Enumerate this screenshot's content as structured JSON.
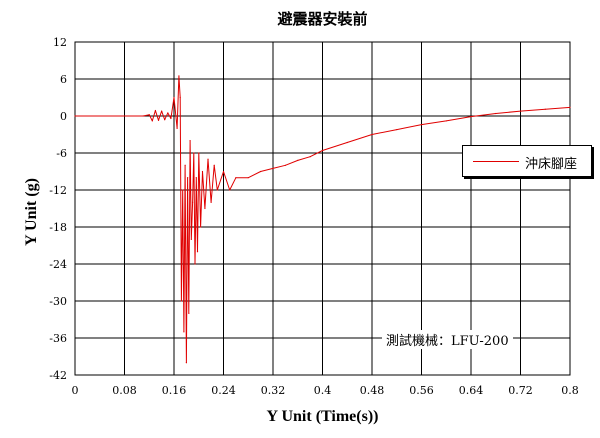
{
  "chart_data": {
    "type": "line",
    "title": "避震器安裝前",
    "xlabel": "Y Unit (Time(s))",
    "ylabel": "Y Unit (g)",
    "xlim": [
      0,
      0.8
    ],
    "ylim": [
      -42,
      12
    ],
    "x_ticks": [
      "0",
      "0.08",
      "0.16",
      "0.24",
      "0.32",
      "0.4",
      "0.48",
      "0.56",
      "0.64",
      "0.72",
      "0.8"
    ],
    "y_ticks": [
      "12",
      "6",
      "0",
      "-6",
      "-12",
      "-18",
      "-24",
      "-30",
      "-36",
      "-42"
    ],
    "grid": true,
    "legend_position": "right",
    "annotation": "測試機械：LFU-200",
    "series": [
      {
        "name": "沖床腳座",
        "color": "#e00000",
        "x": [
          0,
          0.11,
          0.12,
          0.125,
          0.13,
          0.135,
          0.14,
          0.145,
          0.15,
          0.155,
          0.16,
          0.165,
          0.168,
          0.17,
          0.172,
          0.174,
          0.176,
          0.178,
          0.18,
          0.182,
          0.184,
          0.186,
          0.188,
          0.19,
          0.192,
          0.194,
          0.196,
          0.198,
          0.2,
          0.203,
          0.206,
          0.21,
          0.215,
          0.22,
          0.225,
          0.23,
          0.24,
          0.25,
          0.26,
          0.28,
          0.3,
          0.32,
          0.34,
          0.36,
          0.38,
          0.4,
          0.44,
          0.48,
          0.52,
          0.56,
          0.6,
          0.64,
          0.68,
          0.72,
          0.76,
          0.8
        ],
        "y": [
          0,
          0,
          0.2,
          -0.8,
          0.9,
          -0.7,
          0.8,
          -0.6,
          0.5,
          -0.4,
          3,
          -2,
          6.5,
          3,
          -30,
          -12,
          -35,
          -8,
          -40,
          -10,
          -32,
          -4,
          -20,
          -14,
          -6,
          -24,
          -10,
          -22,
          -6,
          -18,
          -9,
          -15,
          -7,
          -14,
          -8,
          -12,
          -9,
          -12,
          -10,
          -10,
          -9,
          -8.5,
          -8,
          -7.2,
          -6.6,
          -5.6,
          -4.3,
          -3,
          -2.2,
          -1.4,
          -0.8,
          -0.1,
          0.4,
          0.8,
          1.1,
          1.4
        ]
      }
    ]
  }
}
